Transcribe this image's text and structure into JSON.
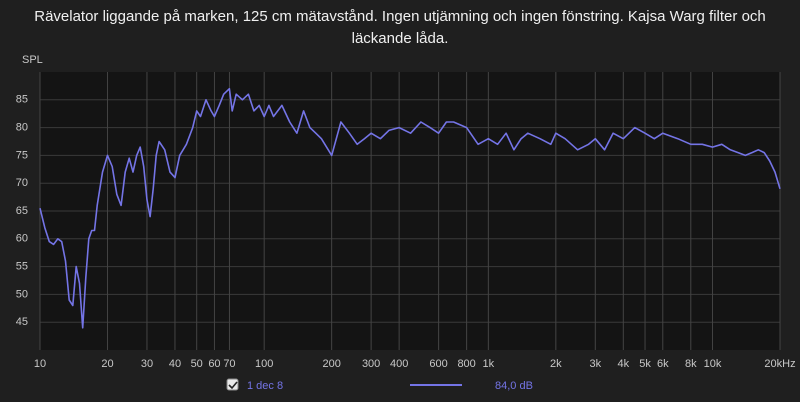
{
  "chart_data": {
    "type": "line",
    "title": "Rävelator liggande på marken, 125 cm mätavstånd. Ingen utjämning och ingen fönstring. Kajsa Warg filter och läckande låda.",
    "y_label": "SPL",
    "x_scale": "log",
    "grid": true,
    "xlim": [
      10,
      20000
    ],
    "ylim": [
      40,
      90
    ],
    "yticks": [
      45,
      50,
      55,
      60,
      65,
      70,
      75,
      80,
      85
    ],
    "xticks": [
      10,
      20,
      30,
      40,
      50,
      60,
      70,
      100,
      200,
      300,
      400,
      600,
      800,
      {
        "value": 1000,
        "label": "1k"
      },
      {
        "value": 2000,
        "label": "2k"
      },
      {
        "value": 3000,
        "label": "3k"
      },
      {
        "value": 4000,
        "label": "4k"
      },
      {
        "value": 5000,
        "label": "5k"
      },
      {
        "value": 6000,
        "label": "6k"
      },
      {
        "value": 8000,
        "label": "8k"
      },
      {
        "value": 10000,
        "label": "10k"
      },
      {
        "value": 20000,
        "label": "20kHz"
      }
    ],
    "x": [
      10,
      10.5,
      11,
      11.5,
      12,
      12.5,
      13,
      13.5,
      14,
      14.5,
      15,
      15.5,
      16,
      16.5,
      17,
      17.5,
      18,
      19,
      20,
      21,
      22,
      23,
      24,
      25,
      26,
      27,
      28,
      29,
      30,
      31,
      32,
      33,
      34,
      36,
      38,
      40,
      42,
      45,
      48,
      50,
      52,
      55,
      58,
      60,
      63,
      66,
      70,
      72,
      75,
      80,
      85,
      90,
      95,
      100,
      105,
      110,
      120,
      130,
      140,
      150,
      160,
      170,
      180,
      200,
      220,
      240,
      260,
      280,
      300,
      330,
      360,
      400,
      450,
      500,
      550,
      600,
      650,
      700,
      800,
      900,
      1000,
      1100,
      1200,
      1300,
      1400,
      1500,
      1700,
      1900,
      2000,
      2200,
      2500,
      2800,
      3000,
      3300,
      3600,
      4000,
      4500,
      5000,
      5500,
      6000,
      7000,
      8000,
      9000,
      10000,
      11000,
      12000,
      13000,
      14000,
      15000,
      16000,
      17000,
      18000,
      19000,
      20000
    ],
    "series": [
      {
        "name": "1 dec 8",
        "color": "#7474e6",
        "legend_value": "84,0 dB",
        "values": [
          65.5,
          62,
          59.5,
          59,
          60,
          59.5,
          56,
          49,
          48,
          55,
          52,
          44,
          53,
          60,
          61.5,
          61.5,
          66,
          72,
          75,
          73,
          68,
          66,
          72,
          74.5,
          72,
          75,
          76.5,
          73,
          67,
          64,
          69,
          75,
          77.5,
          76,
          72,
          71,
          75,
          77,
          80,
          83,
          82,
          85,
          83,
          82,
          84,
          86,
          87,
          83,
          86,
          85,
          86,
          83,
          84,
          82,
          84,
          82,
          84,
          81,
          79,
          83,
          80,
          79,
          78,
          75,
          81,
          79,
          77,
          78,
          79,
          78,
          79.5,
          80,
          79,
          81,
          80,
          79,
          81,
          81,
          80,
          77,
          78,
          77,
          79,
          76,
          78,
          79,
          78,
          77,
          79,
          78,
          76,
          77,
          78,
          76,
          79,
          78,
          80,
          79,
          78,
          79,
          78,
          77,
          77,
          76.5,
          77,
          76,
          75.5,
          75,
          75.5,
          76,
          75.5,
          74,
          72,
          69
        ]
      }
    ]
  }
}
